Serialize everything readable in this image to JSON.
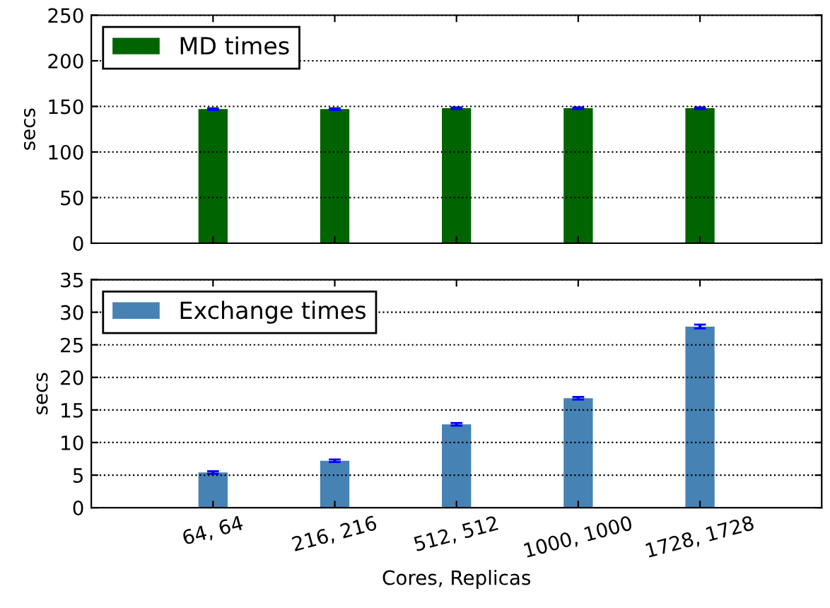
{
  "chart_data": [
    {
      "type": "bar",
      "categories": [
        null,
        null,
        null,
        null,
        null
      ],
      "ylabel": "secs",
      "series": [
        {
          "name": "MD times",
          "color": "#006400",
          "values": [
            147,
            147,
            148,
            148,
            148
          ],
          "errors": [
            1,
            1,
            1,
            1,
            1
          ]
        }
      ],
      "ylim": [
        0,
        250
      ],
      "yticks": [
        0,
        50,
        100,
        150,
        200,
        250
      ],
      "grid": "y",
      "legend": "top left"
    },
    {
      "type": "bar",
      "categories": [
        "64, 64",
        "216, 216",
        "512, 512",
        "1000, 1000",
        "1728, 1728"
      ],
      "ylabel": "secs",
      "xlabel": "Cores, Replicas",
      "series": [
        {
          "name": "Exchange times",
          "color": "#4682b4",
          "values": [
            5.4,
            7.2,
            12.8,
            16.8,
            27.8
          ],
          "errors": [
            0.2,
            0.2,
            0.2,
            0.2,
            0.3
          ]
        }
      ],
      "ylim": [
        0,
        35
      ],
      "yticks": [
        0,
        5,
        10,
        15,
        20,
        25,
        30,
        35
      ],
      "grid": "y",
      "legend": "top left"
    }
  ]
}
